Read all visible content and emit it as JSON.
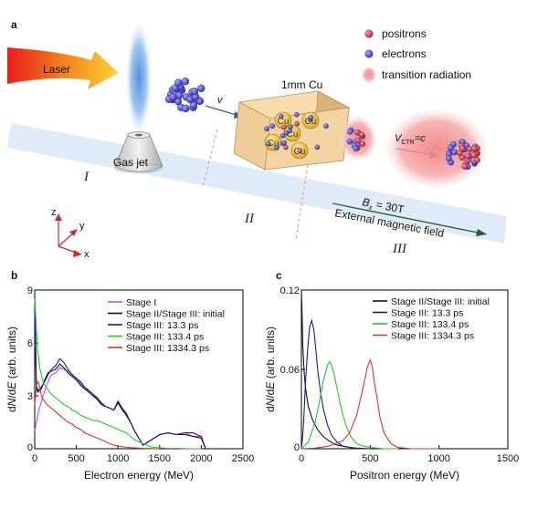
{
  "panel_a": {
    "label": "a",
    "laser": "Laser",
    "gas_jet": "Gas jet",
    "cu_label": "1mm Cu",
    "cu_block_text": "Cu",
    "velocity": "v",
    "vctr": "V",
    "vctr_sub": "CTR",
    "vctr_eq": "=c",
    "field_B": "B",
    "field_sub": "x",
    "field_eq": " = 30T",
    "field_desc": "External magnetic field",
    "stages": [
      "I",
      "II",
      "III"
    ],
    "axes": {
      "z": "z",
      "y": "y",
      "x": "x"
    },
    "legend": [
      {
        "label": "positrons",
        "color": "#d81e3a"
      },
      {
        "label": "electrons",
        "color": "#3a3ad0"
      },
      {
        "label": "transition radiation",
        "color": "#f2a5a5"
      }
    ]
  },
  "chart_data": [
    {
      "panel": "b",
      "type": "line",
      "xlabel": "Electron energy (MeV)",
      "ylabel_prefix": "d",
      "ylabel_N": "N",
      "ylabel_mid": "/d",
      "ylabel_E": "E",
      "ylabel_suffix": " (arb. units)",
      "xlim": [
        0,
        2500
      ],
      "ylim": [
        0,
        9
      ],
      "xticks": [
        0,
        500,
        1000,
        1500,
        2000,
        2500
      ],
      "yticks": [
        0,
        3,
        6,
        9
      ],
      "series": [
        {
          "name": "Stage I",
          "color": "#e040e0",
          "x": [
            0,
            40,
            100,
            150,
            200,
            250,
            300,
            350,
            400,
            450,
            500,
            550,
            600,
            650,
            700,
            750,
            800,
            850,
            900,
            950,
            1000,
            1050,
            1100,
            1150,
            1200,
            1250,
            1300,
            1400,
            1500,
            1600,
            1700,
            1800,
            1900,
            2000,
            2050
          ],
          "y": [
            1.0,
            2.0,
            3.0,
            3.7,
            4.2,
            4.3,
            4.6,
            4.5,
            4.4,
            4.2,
            4.0,
            3.7,
            3.4,
            3.3,
            3.1,
            2.8,
            2.6,
            2.4,
            2.3,
            2.2,
            2.6,
            2.3,
            2.0,
            1.5,
            1.0,
            0.6,
            0.2,
            0.5,
            0.8,
            0.9,
            0.8,
            0.9,
            0.7,
            0.7,
            0.0
          ]
        },
        {
          "name": "Stage II/Stage III: initial",
          "color": "#111111",
          "x": [
            0,
            20,
            40,
            80,
            120,
            160,
            200,
            250,
            300,
            350,
            400,
            450,
            500,
            550,
            600,
            650,
            700,
            750,
            800,
            850,
            900,
            950,
            1000,
            1050,
            1100,
            1150,
            1200,
            1250,
            1300,
            1400,
            1500,
            1600,
            1700,
            1800,
            1900,
            2000,
            2050
          ],
          "y": [
            8.7,
            3.4,
            3.2,
            3.4,
            3.9,
            4.3,
            4.4,
            4.5,
            4.8,
            4.6,
            4.3,
            4.1,
            3.9,
            3.6,
            3.4,
            3.2,
            3.0,
            2.8,
            2.5,
            2.4,
            2.3,
            2.2,
            2.6,
            2.2,
            1.9,
            1.5,
            1.0,
            0.6,
            0.2,
            0.5,
            0.8,
            0.9,
            0.8,
            0.8,
            0.7,
            0.6,
            0.0
          ]
        },
        {
          "name": "Stage III: 13.3 ps",
          "color": "#1a1aa0",
          "x": [
            0,
            20,
            40,
            80,
            120,
            160,
            200,
            250,
            300,
            350,
            400,
            450,
            500,
            550,
            600,
            650,
            700,
            750,
            800,
            850,
            900,
            950,
            1000,
            1050,
            1100,
            1150,
            1200,
            1250,
            1300,
            1400,
            1500,
            1600,
            1700,
            1800,
            1900,
            2000,
            2050
          ],
          "y": [
            8.5,
            3.6,
            3.3,
            3.5,
            3.8,
            4.2,
            4.5,
            4.7,
            5.1,
            4.9,
            4.5,
            4.2,
            4.0,
            3.8,
            3.5,
            3.3,
            3.1,
            2.9,
            2.6,
            2.4,
            2.3,
            2.2,
            2.7,
            2.3,
            2.0,
            1.5,
            1.0,
            0.6,
            0.2,
            0.5,
            0.8,
            0.9,
            0.8,
            0.9,
            0.9,
            0.7,
            0.0
          ]
        },
        {
          "name": "Stage III: 133.4 ps",
          "color": "#22cc22",
          "x": [
            0,
            15,
            30,
            60,
            100,
            150,
            200,
            250,
            300,
            350,
            400,
            450,
            500,
            550,
            600,
            650,
            700,
            750,
            800,
            850,
            900,
            950,
            1000,
            1050,
            1100,
            1150,
            1200,
            1300,
            1400,
            1500,
            1600,
            1700,
            1800,
            1900,
            2000
          ],
          "y": [
            8.5,
            7.3,
            5.8,
            4.6,
            3.8,
            3.4,
            3.1,
            2.9,
            2.7,
            2.5,
            2.4,
            2.2,
            2.1,
            1.9,
            1.8,
            1.7,
            1.6,
            1.6,
            1.5,
            1.4,
            1.3,
            1.2,
            1.1,
            1.0,
            0.9,
            0.7,
            0.5,
            0.3,
            0.1,
            0.05,
            0.02,
            0.02,
            0.01,
            0.0,
            0.0
          ]
        },
        {
          "name": "Stage III: 1334.3 ps",
          "color": "#e03030",
          "x": [
            0,
            20,
            40,
            60,
            80,
            100,
            150,
            200,
            250,
            300,
            350,
            400,
            450,
            500,
            550,
            600,
            650,
            700,
            750,
            800,
            850,
            900,
            950,
            1000,
            1100,
            1200,
            1300,
            1400,
            1500
          ],
          "y": [
            2.5,
            3.6,
            3.8,
            3.5,
            3.0,
            2.8,
            2.5,
            2.3,
            2.1,
            1.9,
            1.7,
            1.5,
            1.4,
            1.2,
            1.1,
            0.9,
            0.8,
            0.7,
            0.6,
            0.5,
            0.4,
            0.3,
            0.2,
            0.15,
            0.08,
            0.05,
            0.02,
            0.01,
            0.0
          ]
        }
      ]
    },
    {
      "panel": "c",
      "type": "line",
      "xlabel": "Positron energy (MeV)",
      "ylabel_prefix": "d",
      "ylabel_N": "N",
      "ylabel_mid": "/d",
      "ylabel_E": "E",
      "ylabel_suffix": " (arb. units)",
      "xlim": [
        0,
        1500
      ],
      "ylim": [
        0,
        0.12
      ],
      "xticks": [
        0,
        500,
        1000,
        1500
      ],
      "yticks": [
        0,
        0.06,
        0.12
      ],
      "ytick_labels": [
        "0",
        "0.06",
        "0.12"
      ],
      "series": [
        {
          "name": "Stage II/Stage III: initial",
          "color": "#111111",
          "x": [
            0,
            5,
            10,
            20,
            30,
            50,
            80,
            120,
            160,
            200,
            250,
            300,
            350,
            400,
            500
          ],
          "y": [
            0.12,
            0.1,
            0.078,
            0.058,
            0.046,
            0.032,
            0.022,
            0.014,
            0.009,
            0.006,
            0.003,
            0.002,
            0.001,
            0.0005,
            0.0
          ]
        },
        {
          "name": "Stage III: 13.3 ps",
          "color": "#1a1aa0",
          "x": [
            0,
            10,
            20,
            30,
            45,
            60,
            75,
            90,
            105,
            120,
            140,
            160,
            190,
            220,
            260,
            300,
            350,
            400,
            500
          ],
          "y": [
            0.0,
            0.01,
            0.028,
            0.05,
            0.075,
            0.092,
            0.097,
            0.09,
            0.075,
            0.058,
            0.042,
            0.03,
            0.018,
            0.01,
            0.005,
            0.002,
            0.001,
            0.0,
            0.0
          ]
        },
        {
          "name": "Stage III: 133.4 ps",
          "color": "#22cc22",
          "x": [
            0,
            50,
            100,
            130,
            160,
            190,
            205,
            220,
            240,
            260,
            280,
            300,
            330,
            360,
            400,
            450,
            500,
            600,
            700
          ],
          "y": [
            0.0,
            0.005,
            0.02,
            0.035,
            0.052,
            0.063,
            0.066,
            0.063,
            0.055,
            0.045,
            0.035,
            0.026,
            0.016,
            0.009,
            0.004,
            0.002,
            0.001,
            0.0,
            0.0
          ]
        },
        {
          "name": "Stage III: 1334.3 ps",
          "color": "#e03030",
          "x": [
            0,
            100,
            200,
            300,
            350,
            400,
            430,
            460,
            480,
            500,
            515,
            530,
            550,
            570,
            600,
            650,
            700,
            800,
            900,
            1000
          ],
          "y": [
            0.0,
            0.0005,
            0.002,
            0.006,
            0.012,
            0.025,
            0.038,
            0.052,
            0.062,
            0.067,
            0.062,
            0.05,
            0.038,
            0.024,
            0.012,
            0.004,
            0.001,
            0.0,
            0.0,
            0.0
          ]
        }
      ]
    }
  ]
}
